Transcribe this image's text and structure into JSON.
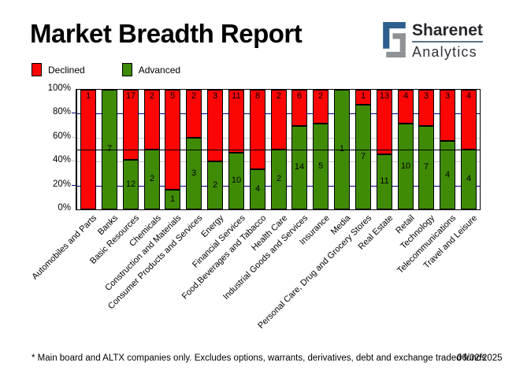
{
  "header": {
    "title": "Market Breadth Report",
    "logo": {
      "name": "Sharenet",
      "sub": "Analytics",
      "blue": "#2e5f8d",
      "gray": "#8f9194"
    }
  },
  "legend": {
    "items": [
      {
        "label": "Declined",
        "color": "#fb0505"
      },
      {
        "label": "Advanced",
        "color": "#3f8b06"
      }
    ]
  },
  "chart_data": {
    "type": "bar",
    "stacked": true,
    "percent_stacked": true,
    "title": "Market Breadth Report",
    "categories": [
      "Automobiles and Parts",
      "Banks",
      "Basic Resources",
      "Chemicals",
      "Construction and Materials",
      "Consumer Products and Services",
      "Energy",
      "Financial Services",
      "Food,Beverages and Tabacco",
      "Health Care",
      "Industrial Goods and Services",
      "Insurance",
      "Media",
      "Personal Care, Drug and Grocery Stores",
      "Real Estate",
      "Retail",
      "Technology",
      "Telecommunications",
      "Travel and Leisure"
    ],
    "series": [
      {
        "name": "Declined",
        "color": "#fb0505",
        "values": [
          1,
          0,
          17,
          2,
          5,
          2,
          3,
          11,
          8,
          2,
          6,
          2,
          0,
          1,
          13,
          4,
          3,
          3,
          4
        ]
      },
      {
        "name": "Advanced",
        "color": "#3f8b06",
        "values": [
          0,
          7,
          12,
          2,
          1,
          3,
          2,
          10,
          4,
          2,
          14,
          5,
          1,
          7,
          11,
          10,
          7,
          4,
          4
        ]
      }
    ],
    "ylim": [
      0,
      100
    ],
    "y_ticks": [
      {
        "pct": 100,
        "label": "100%"
      },
      {
        "pct": 80,
        "label": "80%"
      },
      {
        "pct": 60,
        "label": "60%"
      },
      {
        "pct": 40,
        "label": "40%"
      },
      {
        "pct": 20,
        "label": "20%"
      },
      {
        "pct": 0,
        "label": "0%"
      }
    ],
    "gridlines": [
      {
        "pct": 80,
        "color": "#000080"
      },
      {
        "pct": 60,
        "color": "#c6c6c6"
      },
      {
        "pct": 40,
        "color": "#c6c6c6"
      },
      {
        "pct": 20,
        "color": "#000080"
      }
    ],
    "midline": {
      "pct": 50,
      "color": "#000000"
    },
    "legend_position": "top-left",
    "bar_labels": "counts shown on segments"
  },
  "footer": {
    "note": "* Main board and ALTX companies only. Excludes options, warrants, derivatives, debt and exchange traded funds",
    "date": "06/02/2025"
  }
}
